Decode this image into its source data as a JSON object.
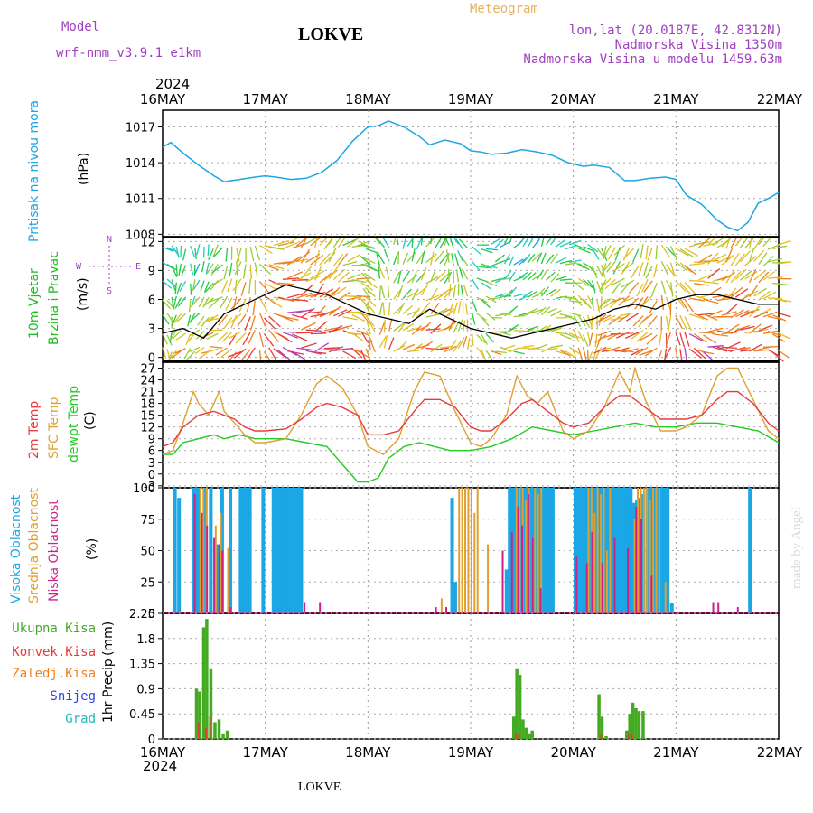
{
  "header": {
    "model_label": "Model",
    "model_name": "wrf-nmm_v3.9.1 e1km",
    "location": "LOKVE",
    "product": "Meteogram",
    "lonlat": "lon,lat (20.0187E, 42.8312N)",
    "altitude": "Nadmorska Visina 1350m",
    "model_altitude": "Nadmorska Visina u modelu 1459.63m",
    "footer_location": "LOKVE",
    "credit": "made by Angel"
  },
  "colors": {
    "pressure": "#1ba7e6",
    "wind_label": "#22bb22",
    "temp2m": "#e83a3a",
    "sfc": "#e0a030",
    "dew": "#22cc22",
    "high": "#1ba7e6",
    "mid": "#e0a030",
    "low": "#cc2288",
    "rain": "#44aa22",
    "conv": "#e83a3a",
    "frz": "#f08020",
    "snow": "#3344dd",
    "hail": "#22bbbb",
    "purple": "#a040c0",
    "orange": "#e8b060"
  },
  "time_axis": {
    "year": "2024",
    "dates": [
      "16MAY",
      "17MAY",
      "18MAY",
      "19MAY",
      "20MAY",
      "21MAY",
      "22MAY"
    ]
  },
  "panels": {
    "pressure": {
      "label": "Pritisak na nivou mora",
      "unit": "(hPa)"
    },
    "wind": {
      "label1": "10m Vjetar",
      "label2": "Brzina i Pravac",
      "unit": "(m/s)",
      "compass": [
        "N",
        "S",
        "W",
        "E"
      ]
    },
    "temp": {
      "label1": "2m Temp",
      "label2": "SFC Temp",
      "label3": "dewpt Temp",
      "unit": "(C)"
    },
    "cloud": {
      "label1": "Visoka Oblacnost",
      "label2": "Srednja Oblacnost",
      "label3": "Niska Oblacnost",
      "unit": "(%)"
    },
    "precip": {
      "label": "1hr Precip",
      "unit": "(mm)",
      "legend": [
        "Ukupna Kisa",
        "Konvek.Kisa",
        "Zaledj.Kisa",
        "Snijeg",
        "Grad"
      ]
    }
  },
  "chart_data": [
    {
      "type": "line",
      "title": "Pritisak na nivou mora",
      "ylabel": "(hPa)",
      "ylim": [
        1007.8,
        1018.4
      ],
      "yticks": [
        "1008",
        "1011",
        "1014",
        "1017"
      ],
      "xlim": [
        0,
        6
      ],
      "series": [
        {
          "x": [
            0,
            0.08,
            0.2,
            0.35,
            0.5,
            0.6,
            0.75,
            0.9,
            1.0,
            1.1,
            1.25,
            1.4,
            1.55,
            1.7,
            1.85,
            2.0,
            2.1,
            2.2,
            2.35,
            2.5,
            2.6,
            2.75,
            2.9,
            3.0,
            3.1,
            3.2,
            3.35,
            3.5,
            3.65,
            3.8,
            3.95,
            4.1,
            4.2,
            4.35,
            4.5,
            4.6,
            4.75,
            4.9,
            5.0,
            5.1,
            5.25,
            5.4,
            5.5,
            5.6,
            5.7,
            5.8,
            5.9,
            6.0
          ],
          "values": [
            1015.3,
            1015.7,
            1014.8,
            1013.8,
            1012.9,
            1012.4,
            1012.6,
            1012.8,
            1012.9,
            1012.8,
            1012.6,
            1012.7,
            1013.2,
            1014.2,
            1015.8,
            1017.0,
            1017.1,
            1017.5,
            1017.0,
            1016.2,
            1015.5,
            1015.9,
            1015.6,
            1015.0,
            1014.9,
            1014.7,
            1014.8,
            1015.1,
            1014.9,
            1014.6,
            1014.0,
            1013.7,
            1013.8,
            1013.6,
            1012.5,
            1012.5,
            1012.7,
            1012.8,
            1012.6,
            1011.3,
            1010.5,
            1009.2,
            1008.6,
            1008.3,
            1009.0,
            1010.6,
            1011.0,
            1011.5
          ]
        }
      ]
    },
    {
      "type": "line",
      "title": "10m Vjetar Brzina i Pravac",
      "ylabel": "(m/s)",
      "ylim": [
        -0.5,
        12.5
      ],
      "yticks": [
        "0",
        "3",
        "6",
        "9",
        "12"
      ],
      "xlim": [
        0,
        6
      ],
      "series": [
        {
          "x": [
            0,
            0.2,
            0.4,
            0.6,
            0.8,
            1.0,
            1.2,
            1.4,
            1.6,
            1.8,
            2.0,
            2.2,
            2.4,
            2.6,
            2.8,
            3.0,
            3.2,
            3.4,
            3.6,
            3.8,
            4.0,
            4.2,
            4.4,
            4.6,
            4.8,
            5.0,
            5.2,
            5.4,
            5.6,
            5.8,
            6.0
          ],
          "values": [
            2.5,
            3.0,
            2.0,
            4.5,
            5.5,
            6.5,
            7.5,
            7.0,
            6.5,
            5.5,
            4.5,
            4.0,
            3.5,
            5.0,
            4.0,
            3.0,
            2.5,
            2.0,
            2.5,
            3.0,
            3.5,
            4.0,
            5.0,
            5.5,
            5.0,
            6.0,
            6.5,
            6.5,
            6.0,
            5.5,
            5.5
          ]
        }
      ]
    },
    {
      "type": "line",
      "title": "Temp",
      "ylabel": "(C)",
      "ylim": [
        -3.5,
        28.5
      ],
      "yticks": [
        "-3",
        "0",
        "3",
        "6",
        "9",
        "12",
        "15",
        "18",
        "21",
        "24",
        "27"
      ],
      "xlim": [
        0,
        6
      ],
      "series": [
        {
          "name": "2m Temp",
          "x": [
            0,
            0.1,
            0.2,
            0.35,
            0.5,
            0.6,
            0.7,
            0.8,
            0.9,
            1.0,
            1.2,
            1.35,
            1.5,
            1.6,
            1.75,
            1.9,
            2.0,
            2.15,
            2.3,
            2.45,
            2.55,
            2.7,
            2.85,
            3.0,
            3.1,
            3.2,
            3.35,
            3.5,
            3.6,
            3.75,
            3.9,
            4.0,
            4.15,
            4.3,
            4.45,
            4.55,
            4.7,
            4.85,
            5.0,
            5.1,
            5.25,
            5.4,
            5.5,
            5.6,
            5.75,
            5.9,
            6.0
          ],
          "values": [
            7,
            8,
            12,
            15,
            16,
            15,
            14,
            12,
            11,
            11,
            11.5,
            14,
            17,
            18,
            17,
            15,
            10,
            10,
            11,
            16,
            19,
            19,
            17,
            12,
            11,
            11,
            14,
            18,
            19,
            16,
            13,
            12,
            13,
            17,
            20,
            20,
            17,
            14,
            14,
            14,
            15,
            19,
            21,
            21,
            18,
            13,
            11
          ]
        },
        {
          "name": "SFC Temp",
          "x": [
            0,
            0.1,
            0.2,
            0.3,
            0.35,
            0.45,
            0.55,
            0.6,
            0.7,
            0.8,
            0.9,
            1.0,
            1.2,
            1.35,
            1.5,
            1.6,
            1.75,
            1.9,
            2.0,
            2.15,
            2.3,
            2.45,
            2.55,
            2.7,
            2.85,
            3.0,
            3.1,
            3.2,
            3.35,
            3.45,
            3.55,
            3.65,
            3.75,
            3.9,
            4.0,
            4.15,
            4.3,
            4.45,
            4.55,
            4.6,
            4.7,
            4.85,
            5.0,
            5.1,
            5.25,
            5.4,
            5.5,
            5.6,
            5.75,
            5.9,
            6.0
          ],
          "values": [
            5,
            6,
            13,
            21,
            18,
            15,
            21,
            16,
            13,
            10,
            8,
            8,
            9,
            15,
            23,
            25,
            22,
            15,
            7,
            5,
            9,
            21,
            26,
            25,
            16,
            8,
            7,
            9,
            15,
            25,
            20,
            18,
            21,
            11,
            9,
            11,
            17,
            26,
            21,
            27,
            19,
            11,
            11,
            12,
            15,
            25,
            27,
            27,
            19,
            11,
            9
          ]
        },
        {
          "name": "dewpt Temp",
          "x": [
            0,
            0.1,
            0.2,
            0.35,
            0.5,
            0.6,
            0.75,
            0.9,
            1.0,
            1.2,
            1.4,
            1.6,
            1.8,
            1.9,
            2.0,
            2.1,
            2.2,
            2.35,
            2.5,
            2.65,
            2.8,
            3.0,
            3.2,
            3.4,
            3.6,
            3.8,
            4.0,
            4.2,
            4.4,
            4.6,
            4.8,
            5.0,
            5.2,
            5.4,
            5.6,
            5.8,
            6.0
          ],
          "values": [
            5,
            5,
            8,
            9,
            10,
            9,
            10,
            9,
            9,
            9,
            8,
            7,
            1,
            -2,
            -2,
            -1,
            4,
            7,
            8,
            7,
            6,
            6,
            7,
            9,
            12,
            11,
            10,
            11,
            12,
            13,
            12,
            12,
            13,
            13,
            12,
            11,
            8
          ]
        }
      ]
    },
    {
      "type": "bar",
      "title": "Oblacnost",
      "ylabel": "(%)",
      "ylim": [
        0,
        100
      ],
      "yticks": [
        "0",
        "25",
        "50",
        "75",
        "100"
      ],
      "xlim": [
        0,
        6
      ],
      "series": [
        {
          "name": "Visoka Oblacnost",
          "x": [
            0.12,
            0.16,
            0.3,
            0.33,
            0.36,
            0.42,
            0.47,
            0.53,
            0.58,
            0.66,
            0.76,
            0.79,
            0.82,
            0.85,
            0.98,
            1.08,
            1.11,
            1.14,
            1.17,
            1.2,
            1.23,
            1.26,
            1.29,
            1.32,
            1.35,
            2.82,
            2.85,
            3.35,
            3.38,
            3.41,
            3.44,
            3.47,
            3.5,
            3.53,
            3.56,
            3.59,
            3.62,
            3.65,
            3.68,
            3.71,
            3.74,
            3.77,
            3.8,
            4.02,
            4.05,
            4.08,
            4.11,
            4.14,
            4.17,
            4.2,
            4.23,
            4.26,
            4.29,
            4.32,
            4.35,
            4.38,
            4.41,
            4.44,
            4.47,
            4.5,
            4.53,
            4.56,
            4.59,
            4.62,
            4.65,
            4.68,
            4.72,
            4.76,
            4.79,
            4.82,
            4.86,
            4.89,
            4.92,
            4.96,
            5.72
          ],
          "values": [
            100,
            92,
            100,
            100,
            100,
            100,
            100,
            55,
            100,
            100,
            100,
            100,
            100,
            100,
            100,
            100,
            100,
            100,
            100,
            100,
            100,
            100,
            100,
            100,
            100,
            92,
            25,
            35,
            100,
            100,
            100,
            100,
            100,
            100,
            100,
            100,
            100,
            100,
            100,
            100,
            100,
            100,
            100,
            100,
            100,
            100,
            100,
            100,
            100,
            100,
            100,
            100,
            100,
            100,
            100,
            100,
            100,
            100,
            100,
            100,
            100,
            100,
            88,
            90,
            92,
            95,
            100,
            100,
            100,
            100,
            100,
            100,
            100,
            8,
            100
          ]
        },
        {
          "name": "Srednja Oblacnost",
          "x": [
            0.35,
            0.38,
            0.41,
            0.44,
            0.5,
            0.55,
            0.62,
            2.7,
            2.87,
            2.9,
            2.93,
            2.96,
            2.99,
            3.02,
            3.05,
            3.15,
            3.43,
            3.46,
            3.49,
            3.52,
            3.55,
            3.58,
            3.61,
            3.64,
            3.67,
            4.13,
            4.16,
            4.19,
            4.22,
            4.25,
            4.28,
            4.31,
            4.34,
            4.58,
            4.61,
            4.64,
            4.67,
            4.7,
            4.73,
            4.76,
            4.79,
            4.82,
            4.88
          ],
          "values": [
            100,
            100,
            100,
            95,
            70,
            80,
            52,
            12,
            100,
            100,
            100,
            100,
            100,
            80,
            100,
            55,
            100,
            100,
            100,
            90,
            100,
            60,
            100,
            95,
            100,
            100,
            100,
            80,
            100,
            95,
            100,
            50,
            100,
            75,
            100,
            100,
            100,
            100,
            90,
            100,
            100,
            100,
            25
          ]
        },
        {
          "name": "Niska Oblacnost",
          "x": [
            0.33,
            0.4,
            0.45,
            0.52,
            0.57,
            0.6,
            0.68,
            1.4,
            1.55,
            2.68,
            2.78,
            3.33,
            3.42,
            3.48,
            3.52,
            3.58,
            3.62,
            3.7,
            4.05,
            4.15,
            4.2,
            4.3,
            4.42,
            4.55,
            4.63,
            4.68,
            4.78,
            5.38,
            5.43,
            5.62
          ],
          "values": [
            95,
            80,
            70,
            60,
            55,
            50,
            5,
            9,
            9,
            5,
            5,
            50,
            65,
            85,
            70,
            95,
            60,
            20,
            45,
            40,
            65,
            40,
            60,
            52,
            85,
            75,
            30,
            9,
            9,
            5
          ]
        }
      ]
    },
    {
      "type": "bar",
      "title": "1hr Precip",
      "ylabel": "(mm)",
      "ylim": [
        0,
        2.25
      ],
      "yticks": [
        "0",
        "0.45",
        "0.9",
        "1.35",
        "1.8",
        "2.25"
      ],
      "xlim": [
        0,
        6
      ],
      "series": [
        {
          "name": "Ukupna Kisa",
          "x": [
            0.33,
            0.36,
            0.4,
            0.43,
            0.47,
            0.51,
            0.55,
            0.59,
            0.63,
            3.42,
            3.45,
            3.48,
            3.51,
            3.54,
            3.57,
            3.6,
            4.25,
            4.28,
            4.32,
            4.52,
            4.55,
            4.58,
            4.61,
            4.64,
            4.68
          ],
          "values": [
            0.9,
            0.85,
            2.0,
            2.15,
            1.25,
            0.3,
            0.35,
            0.1,
            0.15,
            0.4,
            1.25,
            1.15,
            0.35,
            0.2,
            0.1,
            0.15,
            0.8,
            0.4,
            0.05,
            0.15,
            0.45,
            0.65,
            0.55,
            0.5,
            0.5
          ]
        },
        {
          "name": "Konvek.Kisa",
          "x": [
            0.36,
            0.43,
            0.47,
            3.45,
            3.48,
            4.28,
            4.55,
            4.58
          ],
          "values": [
            0.3,
            0.2,
            0.4,
            0.1,
            0.1,
            0.1,
            0.1,
            0.1
          ]
        }
      ]
    }
  ]
}
